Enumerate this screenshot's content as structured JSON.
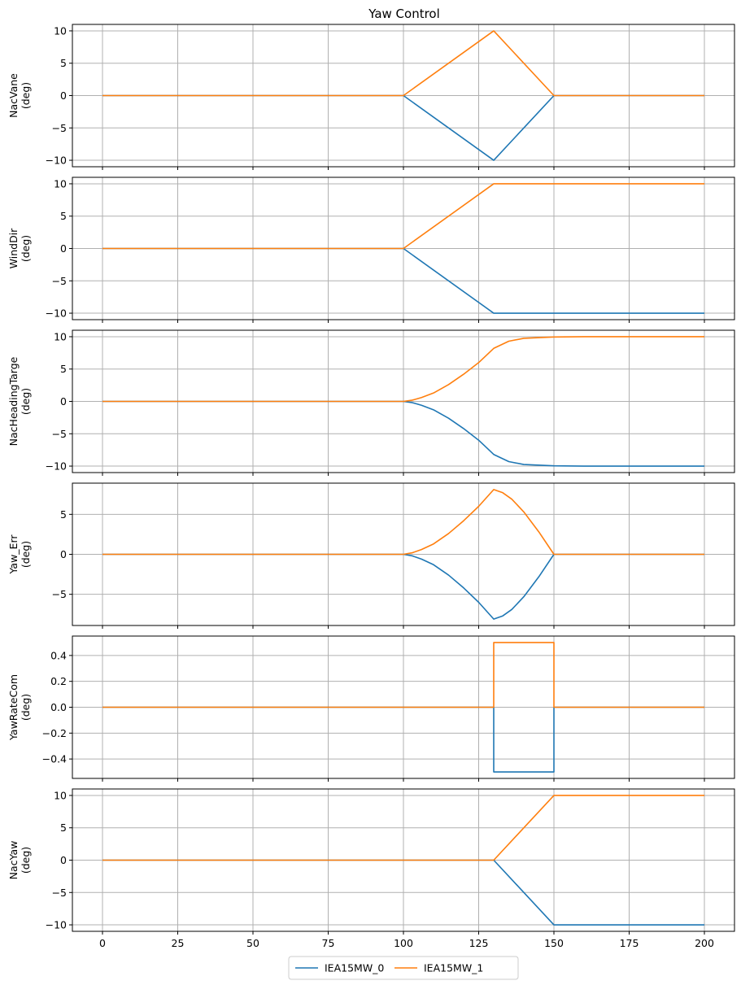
{
  "chart_data": {
    "type": "line",
    "title": "Yaw Control",
    "legend": {
      "placement": "bottom-center",
      "entries": [
        "IEA15MW_0",
        "IEA15MW_1"
      ]
    },
    "colors": {
      "IEA15MW_0": "#1f77b4",
      "IEA15MW_1": "#ff7f0e",
      "grid": "#b0b0b0"
    },
    "grid": true,
    "xlim": [
      -10,
      210
    ],
    "xticks": [
      0,
      25,
      50,
      75,
      100,
      125,
      150,
      175,
      200
    ],
    "xtick_labels": [
      "0",
      "25",
      "50",
      "75",
      "100",
      "125",
      "150",
      "175",
      "200"
    ],
    "xlabel": "",
    "panels": [
      {
        "ylabel": "NacVane\n(deg)",
        "ylim": [
          -11,
          11
        ],
        "yticks": [
          -10,
          -5,
          0,
          5,
          10
        ],
        "ytick_labels": [
          "−10",
          "−5",
          "0",
          "5",
          "10"
        ],
        "series": [
          {
            "name": "IEA15MW_0",
            "x": [
              0,
              100,
              130,
              150,
              200
            ],
            "y": [
              0,
              0,
              -10,
              0,
              0
            ]
          },
          {
            "name": "IEA15MW_1",
            "x": [
              0,
              100,
              130,
              150,
              200
            ],
            "y": [
              0,
              0,
              10,
              0,
              0
            ]
          }
        ]
      },
      {
        "ylabel": "WindDir\n(deg)",
        "ylim": [
          -11,
          11
        ],
        "yticks": [
          -10,
          -5,
          0,
          5,
          10
        ],
        "ytick_labels": [
          "−10",
          "−5",
          "0",
          "5",
          "10"
        ],
        "series": [
          {
            "name": "IEA15MW_0",
            "x": [
              0,
              100,
              130,
              200
            ],
            "y": [
              0,
              0,
              -10,
              -10
            ]
          },
          {
            "name": "IEA15MW_1",
            "x": [
              0,
              100,
              130,
              200
            ],
            "y": [
              0,
              0,
              10,
              10
            ]
          }
        ]
      },
      {
        "ylabel": "NacHeadingTarge\n(deg)",
        "ylim": [
          -11,
          11
        ],
        "yticks": [
          -10,
          -5,
          0,
          5,
          10
        ],
        "ytick_labels": [
          "−10",
          "−5",
          "0",
          "5",
          "10"
        ],
        "series": [
          {
            "name": "IEA15MW_0",
            "x": [
              0,
              100,
              103,
              106,
              110,
              115,
              120,
              125,
              130,
              135,
              140,
              150,
              160,
              175,
              200
            ],
            "y": [
              0,
              0,
              -0.2,
              -0.6,
              -1.3,
              -2.6,
              -4.2,
              -6.0,
              -8.2,
              -9.3,
              -9.75,
              -9.95,
              -10,
              -10,
              -10
            ]
          },
          {
            "name": "IEA15MW_1",
            "x": [
              0,
              100,
              103,
              106,
              110,
              115,
              120,
              125,
              130,
              135,
              140,
              150,
              160,
              175,
              200
            ],
            "y": [
              0,
              0,
              0.2,
              0.6,
              1.3,
              2.6,
              4.2,
              6.0,
              8.2,
              9.3,
              9.75,
              9.95,
              10,
              10,
              10
            ]
          }
        ]
      },
      {
        "ylabel": "Yaw_Err\n(deg)",
        "ylim": [
          -8.9,
          8.9
        ],
        "yticks": [
          -5,
          0,
          5
        ],
        "ytick_labels": [
          "−5",
          "0",
          "5"
        ],
        "series": [
          {
            "name": "IEA15MW_0",
            "x": [
              0,
              100,
              103,
              106,
              110,
              115,
              120,
              125,
              130,
              133,
              136,
              140,
              145,
              150,
              200
            ],
            "y": [
              0,
              0,
              -0.2,
              -0.6,
              -1.3,
              -2.6,
              -4.2,
              -6.0,
              -8.1,
              -7.7,
              -6.9,
              -5.3,
              -2.8,
              0,
              0
            ]
          },
          {
            "name": "IEA15MW_1",
            "x": [
              0,
              100,
              103,
              106,
              110,
              115,
              120,
              125,
              130,
              133,
              136,
              140,
              145,
              150,
              200
            ],
            "y": [
              0,
              0,
              0.2,
              0.6,
              1.3,
              2.6,
              4.2,
              6.0,
              8.1,
              7.7,
              6.9,
              5.3,
              2.8,
              0,
              0
            ]
          }
        ]
      },
      {
        "ylabel": "YawRateCom\n(deg)",
        "ylim": [
          -0.55,
          0.55
        ],
        "yticks": [
          -0.4,
          -0.2,
          0.0,
          0.2,
          0.4
        ],
        "ytick_labels": [
          "−0.4",
          "−0.2",
          "0.0",
          "0.2",
          "0.4"
        ],
        "series": [
          {
            "name": "IEA15MW_0",
            "x": [
              0,
              130,
              130,
              150,
              150,
              200
            ],
            "y": [
              0,
              0,
              -0.5,
              -0.5,
              0,
              0
            ]
          },
          {
            "name": "IEA15MW_1",
            "x": [
              0,
              130,
              130,
              150,
              150,
              200
            ],
            "y": [
              0,
              0,
              0.5,
              0.5,
              0,
              0
            ]
          }
        ]
      },
      {
        "ylabel": "NacYaw\n(deg)",
        "ylim": [
          -11,
          11
        ],
        "yticks": [
          -10,
          -5,
          0,
          5,
          10
        ],
        "ytick_labels": [
          "−10",
          "−5",
          "0",
          "5",
          "10"
        ],
        "series": [
          {
            "name": "IEA15MW_0",
            "x": [
              0,
              130,
              150,
              200
            ],
            "y": [
              0,
              0,
              -10,
              -10
            ]
          },
          {
            "name": "IEA15MW_1",
            "x": [
              0,
              130,
              150,
              200
            ],
            "y": [
              0,
              0,
              10,
              10
            ]
          }
        ]
      }
    ]
  }
}
